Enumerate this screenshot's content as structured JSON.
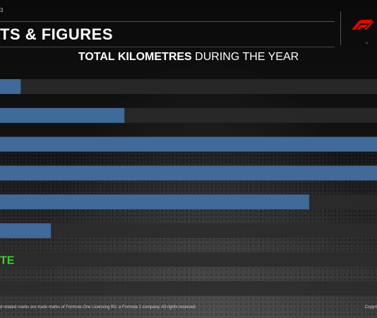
{
  "header": {
    "top_label": "3",
    "title": "TS & FIGURES",
    "logo_text": "G"
  },
  "chart_data": {
    "type": "bar",
    "orientation": "horizontal",
    "title_strong": "TOTAL KILOMETRES",
    "title_light": "DURING THE YEAR",
    "xlim": [
      0,
      100
    ],
    "track_color": "#2b2b2b",
    "bar_color": "#3f6a99",
    "highlight_color": "#39d12b",
    "rows": [
      {
        "label": "",
        "value": 5.5,
        "value_label": ""
      },
      {
        "label": "",
        "value": 33,
        "value_label": ""
      },
      {
        "label": "",
        "value": 100,
        "value_label": ""
      },
      {
        "label": "",
        "value": 100,
        "value_label": ""
      },
      {
        "label": "",
        "value": 82,
        "value_label": ""
      },
      {
        "label": "",
        "value": 13.5,
        "value_label": ""
      },
      {
        "label": "TE",
        "value": 0,
        "value_label": "",
        "highlight": true
      },
      {
        "label": "",
        "value": 0,
        "value_label": ""
      }
    ]
  },
  "footer": {
    "left": "d related marks are trade marks of Formula One Licensing BV, a Formula 1 company. All rights reserved.",
    "right": "Copyri"
  }
}
